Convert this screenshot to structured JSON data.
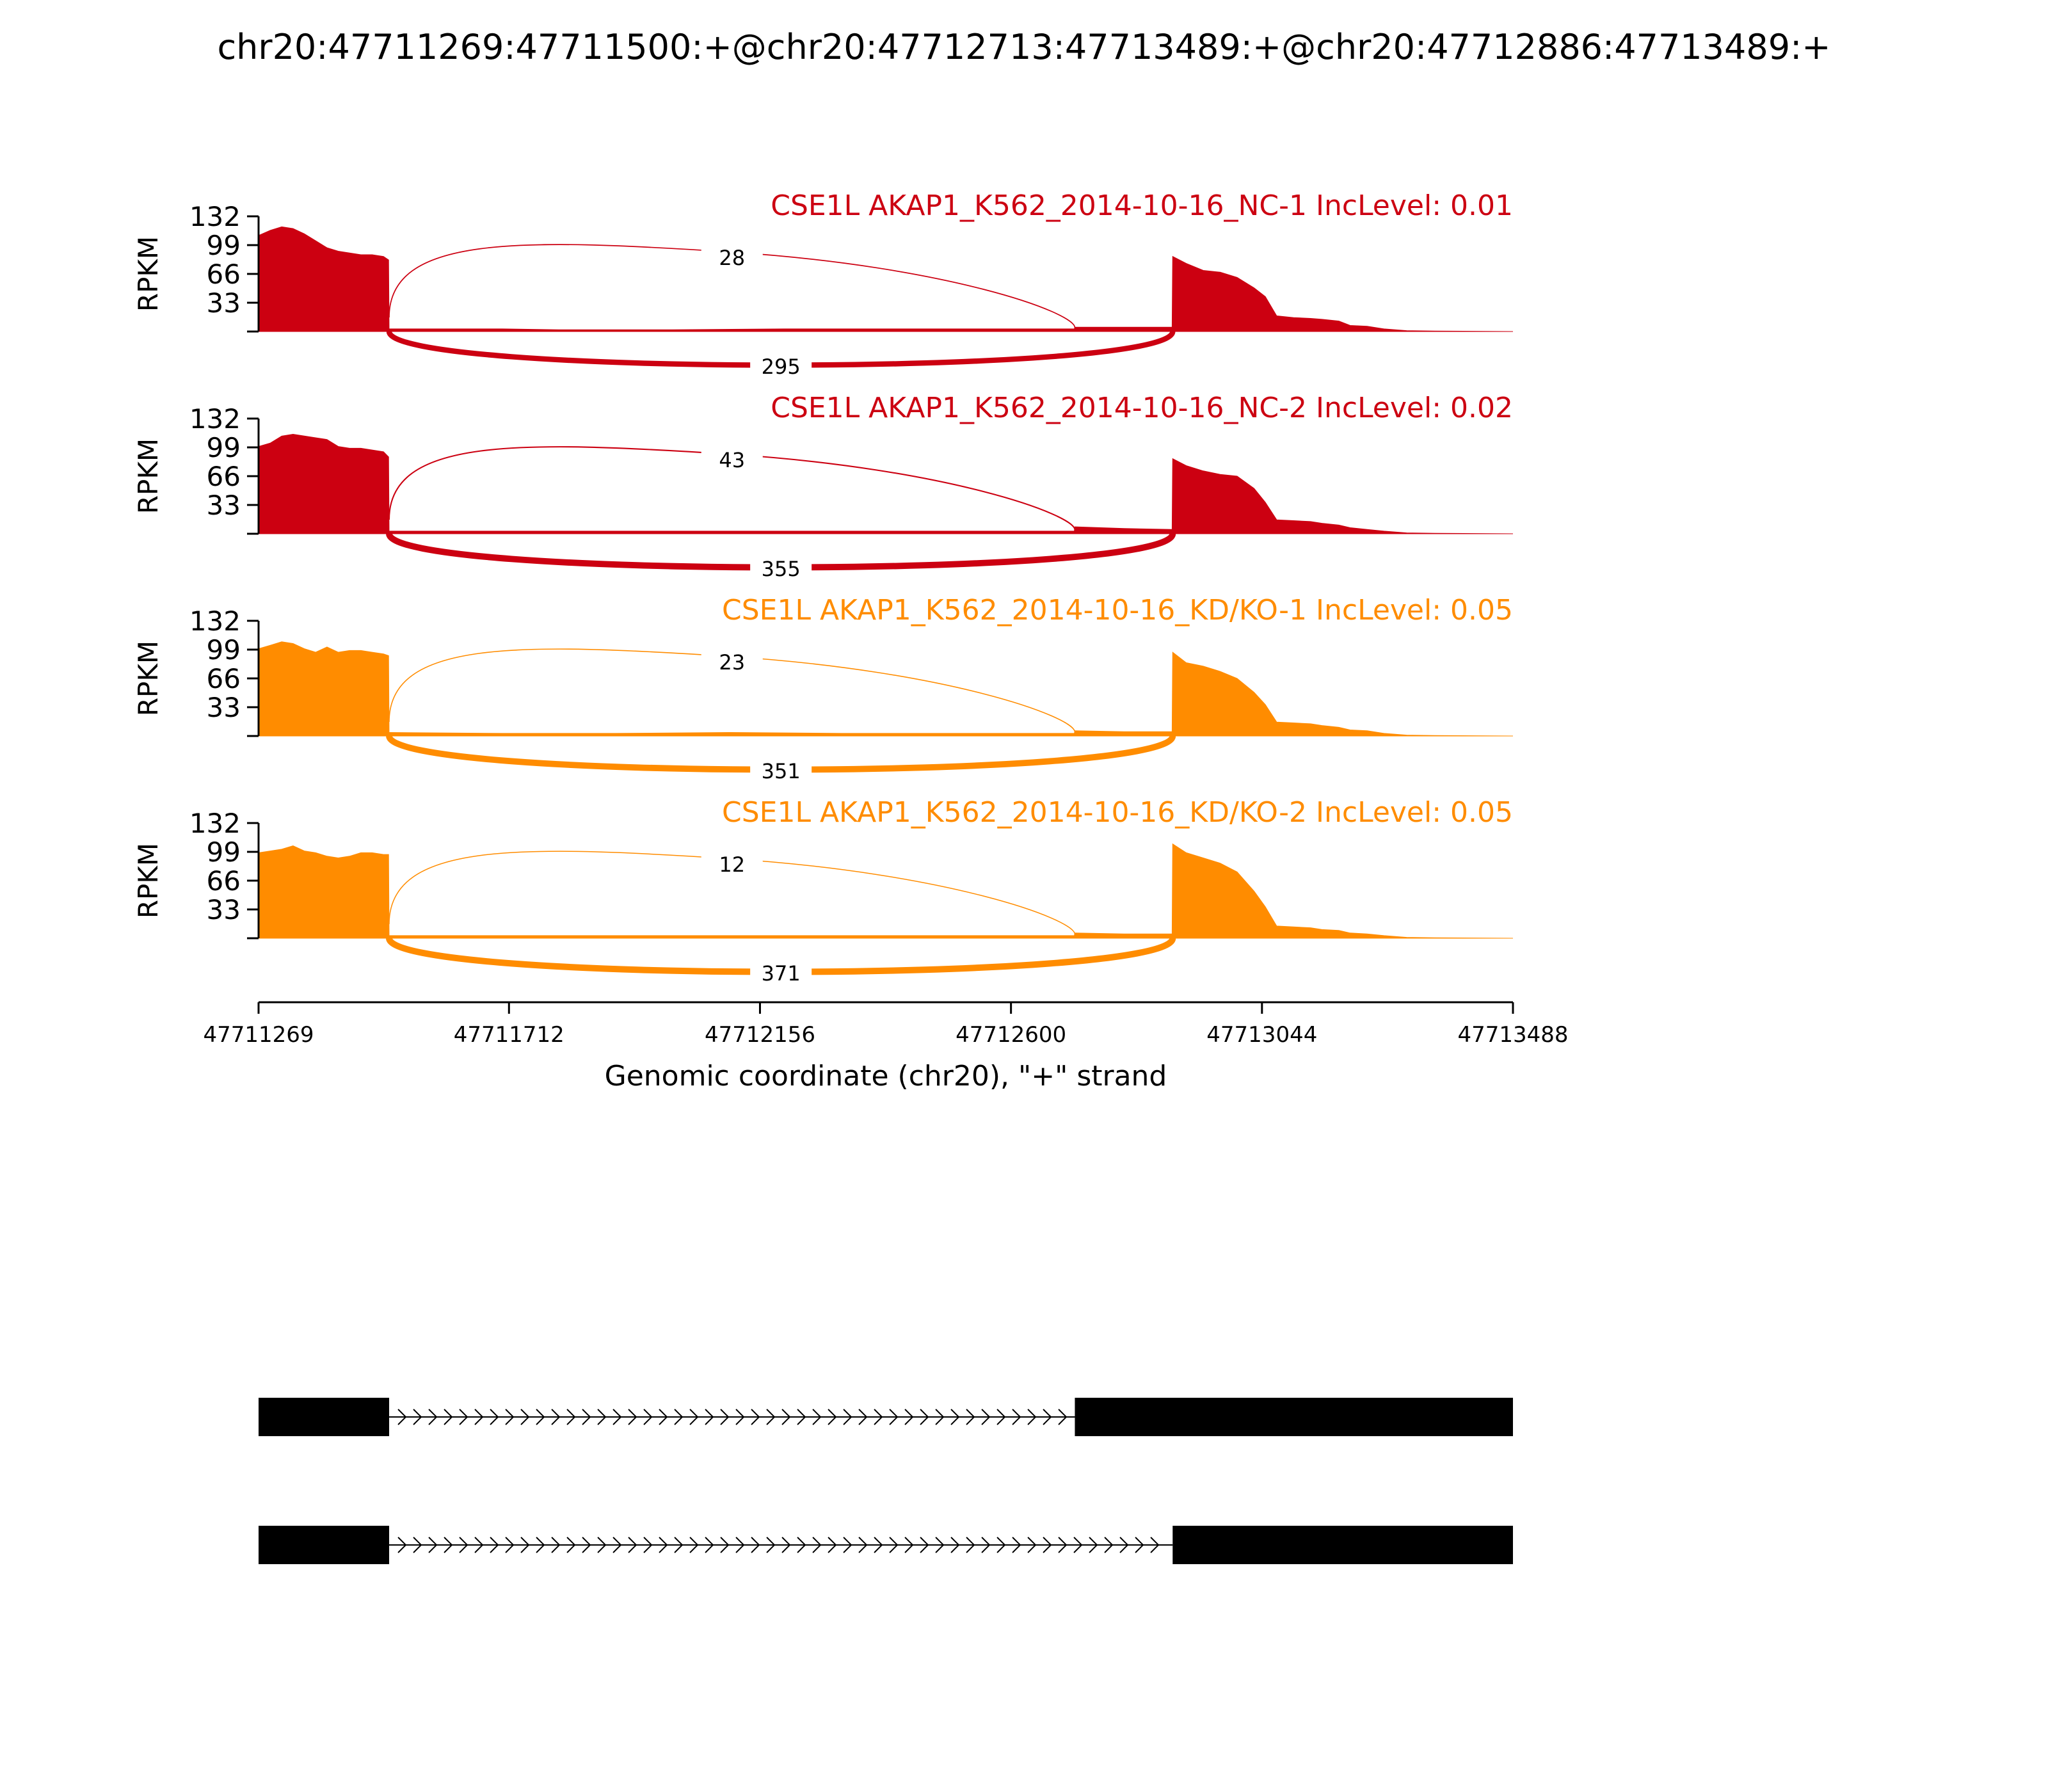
{
  "title": "chr20:47711269:47711500:+@chr20:47712713:47713489:+@chr20:47712886:47713489:+",
  "chart_data": {
    "type": "area",
    "title": "chr20:47711269:47711500:+@chr20:47712713:47713489:+@chr20:47712886:47713489:+",
    "xlabel": "Genomic coordinate (chr20), \"+\" strand",
    "ylabel": "RPKM",
    "xlim": [
      47711269,
      47713488
    ],
    "x_ticks": [
      "47711269",
      "47711712",
      "47712156",
      "47712600",
      "47713044",
      "47713488"
    ],
    "y_ticks": [
      "132",
      "99",
      "66",
      "33"
    ],
    "ylim": [
      0,
      132
    ],
    "colors": {
      "NC": "#cc0011",
      "KD": "#ff8c00",
      "gene": "#000000"
    },
    "series": [
      {
        "label": "CSE1L AKAP1_K562_2014-10-16_NC-1 IncLevel: 0.01",
        "color": "#cc0011",
        "coverage": [
          [
            47711269,
            110
          ],
          [
            47711290,
            116
          ],
          [
            47711310,
            120
          ],
          [
            47711330,
            118
          ],
          [
            47711350,
            112
          ],
          [
            47711370,
            104
          ],
          [
            47711390,
            96
          ],
          [
            47711410,
            92
          ],
          [
            47711430,
            90
          ],
          [
            47711450,
            88
          ],
          [
            47711470,
            88
          ],
          [
            47711490,
            86
          ],
          [
            47711499,
            82
          ],
          [
            47711500,
            0
          ],
          [
            47711501,
            3
          ],
          [
            47711700,
            3
          ],
          [
            47711800,
            2
          ],
          [
            47712000,
            2
          ],
          [
            47712200,
            3
          ],
          [
            47712400,
            3
          ],
          [
            47712600,
            3
          ],
          [
            47712712,
            3
          ],
          [
            47712713,
            5
          ],
          [
            47712800,
            5
          ],
          [
            47712885,
            5
          ],
          [
            47712886,
            86
          ],
          [
            47712910,
            78
          ],
          [
            47712940,
            70
          ],
          [
            47712970,
            68
          ],
          [
            47713000,
            62
          ],
          [
            47713030,
            50
          ],
          [
            47713050,
            40
          ],
          [
            47713070,
            18
          ],
          [
            47713100,
            16
          ],
          [
            47713130,
            15
          ],
          [
            47713150,
            14
          ],
          [
            47713180,
            12
          ],
          [
            47713200,
            7
          ],
          [
            47713230,
            6
          ],
          [
            47713260,
            3
          ],
          [
            47713300,
            1
          ],
          [
            47713350,
            0.5
          ],
          [
            47713488,
            0
          ]
        ],
        "junctions": [
          {
            "start": 47711500,
            "end": 47712713,
            "count": "28",
            "position": "above"
          },
          {
            "start": 47711500,
            "end": 47712886,
            "count": "295",
            "position": "below"
          }
        ]
      },
      {
        "label": "CSE1L AKAP1_K562_2014-10-16_NC-2 IncLevel: 0.02",
        "color": "#cc0011",
        "coverage": [
          [
            47711269,
            100
          ],
          [
            47711290,
            104
          ],
          [
            47711310,
            112
          ],
          [
            47711330,
            114
          ],
          [
            47711350,
            112
          ],
          [
            47711370,
            110
          ],
          [
            47711390,
            108
          ],
          [
            47711410,
            100
          ],
          [
            47711430,
            98
          ],
          [
            47711450,
            98
          ],
          [
            47711470,
            96
          ],
          [
            47711490,
            94
          ],
          [
            47711499,
            88
          ],
          [
            47711500,
            0
          ],
          [
            47711501,
            3
          ],
          [
            47711700,
            3
          ],
          [
            47711900,
            3
          ],
          [
            47712100,
            3
          ],
          [
            47712300,
            3
          ],
          [
            47712500,
            3
          ],
          [
            47712712,
            3
          ],
          [
            47712713,
            8
          ],
          [
            47712800,
            6
          ],
          [
            47712885,
            5
          ],
          [
            47712886,
            86
          ],
          [
            47712910,
            78
          ],
          [
            47712940,
            72
          ],
          [
            47712970,
            68
          ],
          [
            47713000,
            66
          ],
          [
            47713030,
            52
          ],
          [
            47713050,
            36
          ],
          [
            47713070,
            16
          ],
          [
            47713100,
            15
          ],
          [
            47713130,
            14
          ],
          [
            47713150,
            12
          ],
          [
            47713180,
            10
          ],
          [
            47713200,
            7
          ],
          [
            47713230,
            5
          ],
          [
            47713260,
            3
          ],
          [
            47713300,
            1
          ],
          [
            47713350,
            0.5
          ],
          [
            47713488,
            0
          ]
        ],
        "junctions": [
          {
            "start": 47711500,
            "end": 47712713,
            "count": "43",
            "position": "above"
          },
          {
            "start": 47711500,
            "end": 47712886,
            "count": "355",
            "position": "below"
          }
        ]
      },
      {
        "label": "CSE1L AKAP1_K562_2014-10-16_KD/KO-1 IncLevel: 0.05",
        "color": "#ff8c00",
        "coverage": [
          [
            47711269,
            100
          ],
          [
            47711290,
            104
          ],
          [
            47711310,
            108
          ],
          [
            47711330,
            106
          ],
          [
            47711350,
            100
          ],
          [
            47711370,
            96
          ],
          [
            47711390,
            102
          ],
          [
            47711410,
            96
          ],
          [
            47711430,
            98
          ],
          [
            47711450,
            98
          ],
          [
            47711470,
            96
          ],
          [
            47711490,
            94
          ],
          [
            47711499,
            92
          ],
          [
            47711500,
            0
          ],
          [
            47711501,
            4
          ],
          [
            47711700,
            3
          ],
          [
            47711900,
            3
          ],
          [
            47712100,
            4
          ],
          [
            47712300,
            3
          ],
          [
            47712500,
            3
          ],
          [
            47712712,
            3
          ],
          [
            47712713,
            6
          ],
          [
            47712800,
            5
          ],
          [
            47712885,
            5
          ],
          [
            47712886,
            96
          ],
          [
            47712910,
            84
          ],
          [
            47712940,
            80
          ],
          [
            47712970,
            74
          ],
          [
            47713000,
            66
          ],
          [
            47713030,
            50
          ],
          [
            47713050,
            36
          ],
          [
            47713070,
            16
          ],
          [
            47713100,
            15
          ],
          [
            47713130,
            14
          ],
          [
            47713150,
            12
          ],
          [
            47713180,
            10
          ],
          [
            47713200,
            7
          ],
          [
            47713230,
            6
          ],
          [
            47713260,
            3
          ],
          [
            47713300,
            1
          ],
          [
            47713350,
            0.5
          ],
          [
            47713488,
            0
          ]
        ],
        "junctions": [
          {
            "start": 47711500,
            "end": 47712713,
            "count": "23",
            "position": "above"
          },
          {
            "start": 47711500,
            "end": 47712886,
            "count": "351",
            "position": "below"
          }
        ]
      },
      {
        "label": "CSE1L AKAP1_K562_2014-10-16_KD/KO-2 IncLevel: 0.05",
        "color": "#ff8c00",
        "coverage": [
          [
            47711269,
            98
          ],
          [
            47711290,
            100
          ],
          [
            47711310,
            102
          ],
          [
            47711330,
            106
          ],
          [
            47711350,
            100
          ],
          [
            47711370,
            98
          ],
          [
            47711390,
            94
          ],
          [
            47711410,
            92
          ],
          [
            47711430,
            94
          ],
          [
            47711450,
            98
          ],
          [
            47711470,
            98
          ],
          [
            47711490,
            96
          ],
          [
            47711499,
            96
          ],
          [
            47711500,
            0
          ],
          [
            47711501,
            3
          ],
          [
            47711700,
            3
          ],
          [
            47711900,
            3
          ],
          [
            47712100,
            3
          ],
          [
            47712300,
            3
          ],
          [
            47712500,
            3
          ],
          [
            47712712,
            3
          ],
          [
            47712713,
            6
          ],
          [
            47712800,
            5
          ],
          [
            47712885,
            5
          ],
          [
            47712886,
            108
          ],
          [
            47712910,
            98
          ],
          [
            47712940,
            92
          ],
          [
            47712970,
            86
          ],
          [
            47713000,
            76
          ],
          [
            47713030,
            54
          ],
          [
            47713050,
            36
          ],
          [
            47713070,
            14
          ],
          [
            47713100,
            13
          ],
          [
            47713130,
            12
          ],
          [
            47713150,
            10
          ],
          [
            47713180,
            9
          ],
          [
            47713200,
            6
          ],
          [
            47713230,
            5
          ],
          [
            47713260,
            3
          ],
          [
            47713300,
            1
          ],
          [
            47713350,
            0.5
          ],
          [
            47713488,
            0
          ]
        ],
        "junctions": [
          {
            "start": 47711500,
            "end": 47712713,
            "count": "12",
            "position": "above"
          },
          {
            "start": 47711500,
            "end": 47712886,
            "count": "371",
            "position": "below"
          }
        ]
      }
    ],
    "isoforms": [
      {
        "exons": [
          [
            47711269,
            47711500
          ],
          [
            47712713,
            47713488
          ]
        ]
      },
      {
        "exons": [
          [
            47711269,
            47711500
          ],
          [
            47712886,
            47713488
          ]
        ]
      }
    ]
  }
}
